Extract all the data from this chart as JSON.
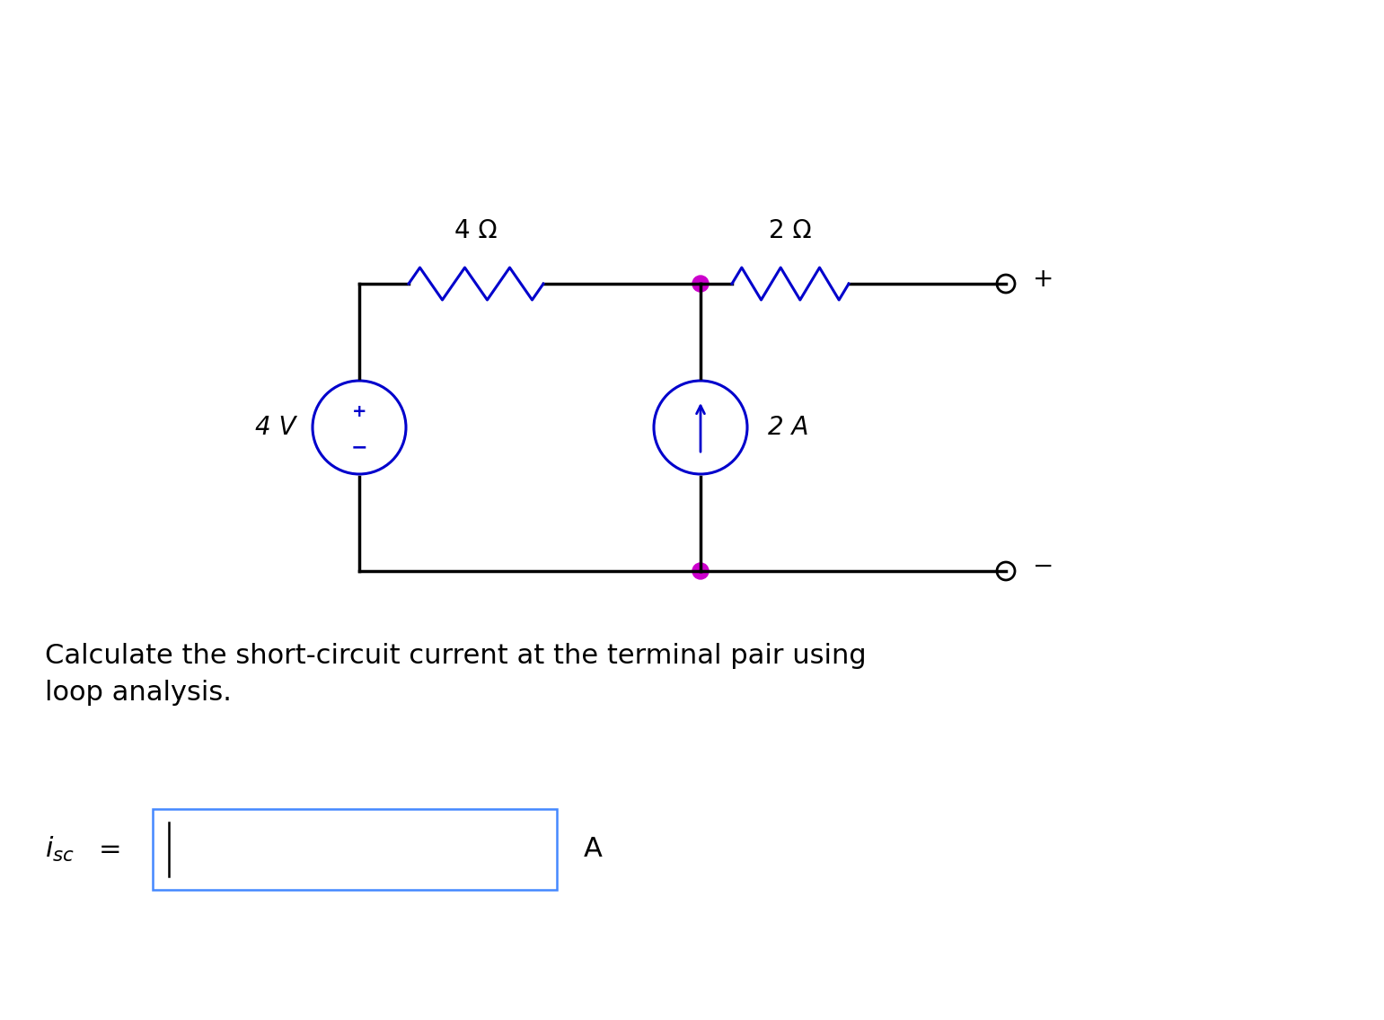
{
  "bg_color": "#ffffff",
  "circuit_color": "#0000cc",
  "wire_color": "#000000",
  "dot_color": "#cc00cc",
  "resistor_color": "#0000cc",
  "text_color": "#000000",
  "label_text": "Calculate the short-circuit current at the terminal pair using\nloop analysis.",
  "answer_label": "i_{sc}",
  "answer_unit": "A",
  "volt_label": "4 V",
  "curr_label": "2 A",
  "res1_label": "4 Ω",
  "res2_label": "2 Ω",
  "plus_label": "+",
  "minus_label": "-",
  "figsize": [
    15.41,
    11.36
  ],
  "dpi": 100
}
